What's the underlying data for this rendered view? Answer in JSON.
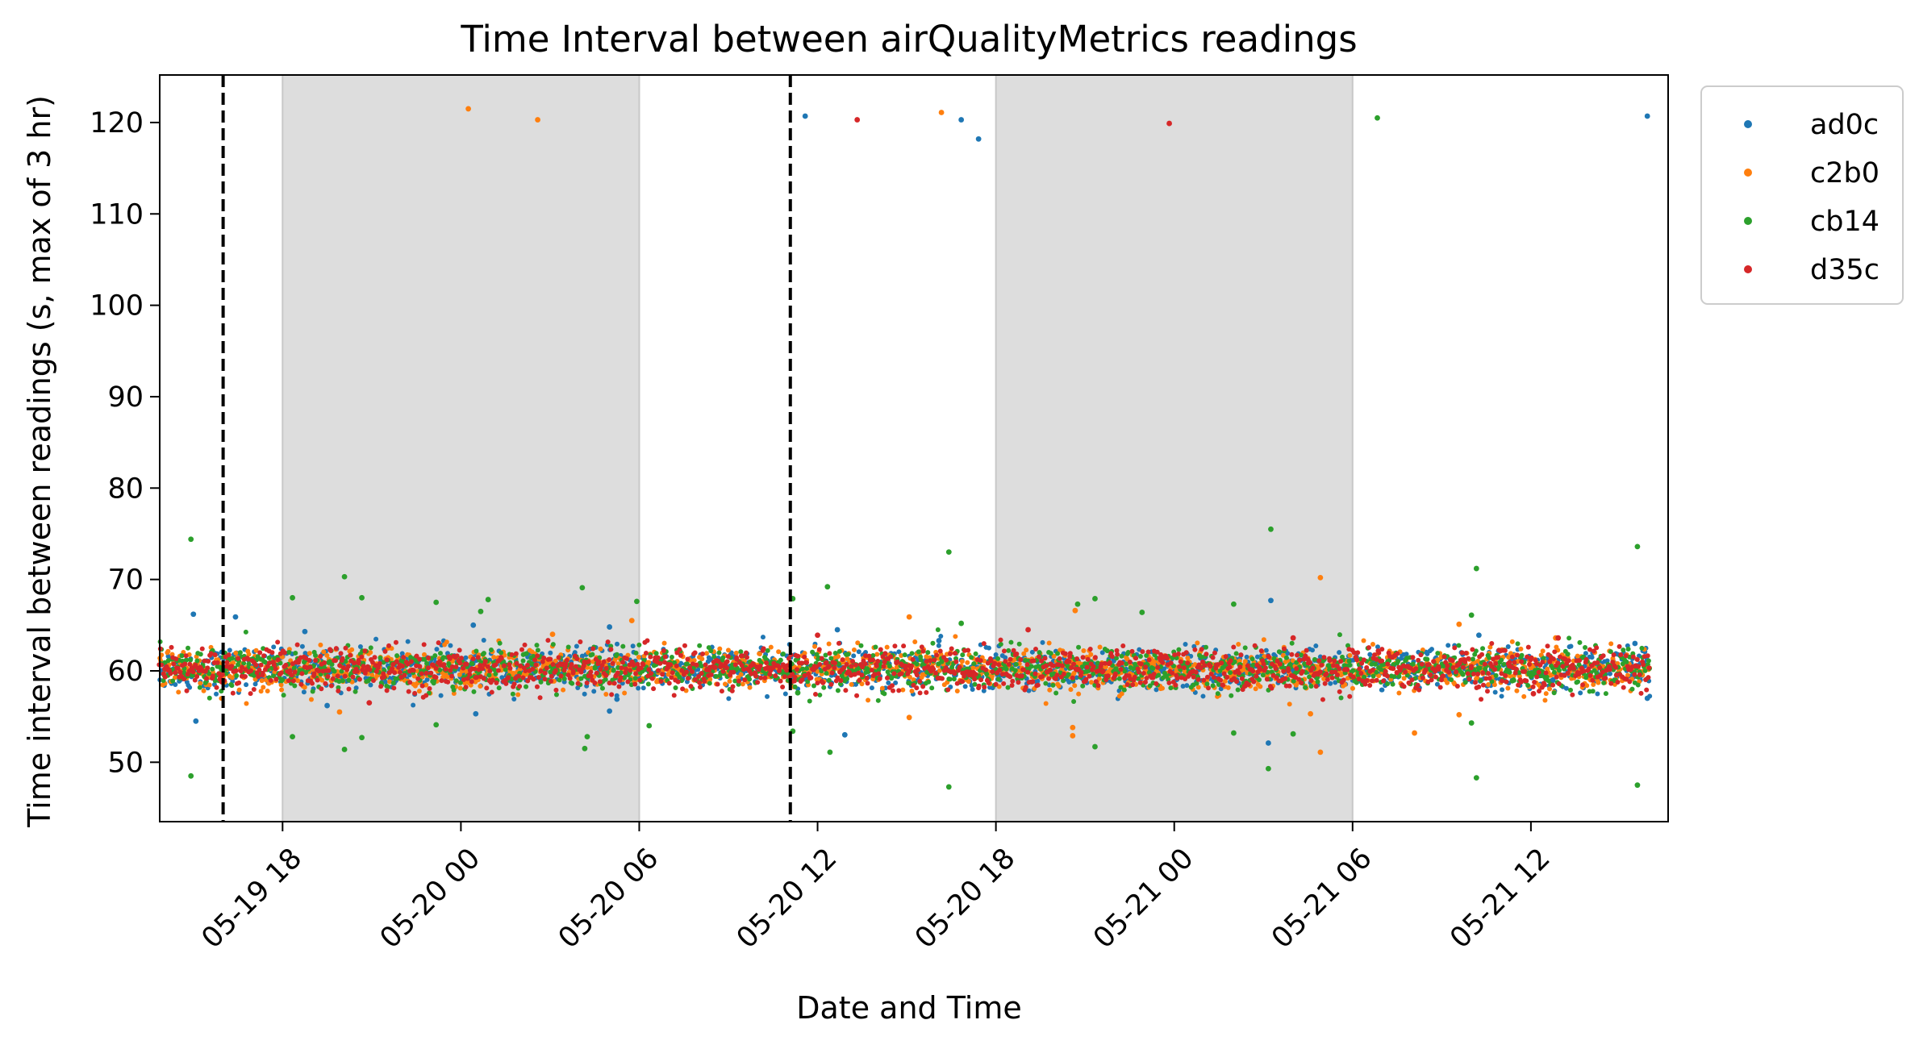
{
  "chart_data": {
    "type": "scatter",
    "title": "Time Interval between airQualityMetrics readings",
    "xlabel": "Date and Time",
    "ylabel": "Time interval between readings (s, max of 3 hr)",
    "x_axis": {
      "type": "datetime",
      "range": [
        "2024-05-19 13:52",
        "2024-05-21 16:37"
      ],
      "ticks": [
        "05-19 18",
        "05-20 00",
        "05-20 06",
        "05-20 12",
        "05-20 18",
        "05-21 00",
        "05-21 06",
        "05-21 12"
      ],
      "tick_times": [
        "2024-05-19 18:00",
        "2024-05-20 00:00",
        "2024-05-20 06:00",
        "2024-05-20 12:00",
        "2024-05-20 18:00",
        "2024-05-21 00:00",
        "2024-05-21 06:00",
        "2024-05-21 12:00"
      ],
      "tick_rotation_deg": 45
    },
    "y_axis": {
      "range": [
        43.5,
        125.2
      ],
      "ticks": [
        50,
        60,
        70,
        80,
        90,
        100,
        110,
        120
      ]
    },
    "grid": false,
    "legend_position": "outside-upper-right",
    "shaded_periods": [
      {
        "start": "2024-05-19 18:00",
        "end": "2024-05-20 06:00",
        "color": "#dddddd"
      },
      {
        "start": "2024-05-20 18:00",
        "end": "2024-05-21 06:00",
        "color": "#dddddd"
      }
    ],
    "vertical_lines": [
      {
        "x": "2024-05-19 16:00",
        "style": "dashed",
        "color": "#000000"
      },
      {
        "x": "2024-05-20 11:05",
        "style": "dashed",
        "color": "#000000"
      }
    ],
    "series": [
      {
        "name": "ad0c",
        "color": "#1f77b4",
        "points": [
          [
            "2024-05-19 15:00",
            66.2
          ],
          [
            "2024-05-19 15:05",
            54.5
          ],
          [
            "2024-05-19 16:25",
            65.9
          ],
          [
            "2024-05-19 18:45",
            64.3
          ],
          [
            "2024-05-19 19:30",
            56.2
          ],
          [
            "2024-05-20 00:30",
            55.3
          ],
          [
            "2024-05-20 00:25",
            65.0
          ],
          [
            "2024-05-20 05:00",
            55.6
          ],
          [
            "2024-05-20 05:00",
            64.8
          ],
          [
            "2024-05-20 05:15",
            56.9
          ],
          [
            "2024-05-20 11:35",
            120.7
          ],
          [
            "2024-05-20 12:40",
            64.5
          ],
          [
            "2024-05-20 12:55",
            53.0
          ],
          [
            "2024-05-20 16:50",
            120.3
          ],
          [
            "2024-05-20 17:25",
            118.2
          ],
          [
            "2024-05-20 16:05",
            63.3
          ],
          [
            "2024-05-21 03:15",
            67.7
          ],
          [
            "2024-05-21 03:10",
            52.1
          ],
          [
            "2024-05-21 10:15",
            63.9
          ],
          [
            "2024-05-21 15:55",
            120.7
          ],
          [
            "2024-05-21 15:30",
            63.0
          ],
          [
            "2024-05-21 15:55",
            57.0
          ]
        ]
      },
      {
        "name": "c2b0",
        "color": "#ff7f0e",
        "points": [
          [
            "2024-05-20 00:15",
            121.5
          ],
          [
            "2024-05-20 02:35",
            120.3
          ],
          [
            "2024-05-19 19:55",
            55.5
          ],
          [
            "2024-05-20 03:05",
            64.0
          ],
          [
            "2024-05-20 05:45",
            65.5
          ],
          [
            "2024-05-20 16:10",
            121.1
          ],
          [
            "2024-05-20 15:05",
            65.9
          ],
          [
            "2024-05-20 15:05",
            54.9
          ],
          [
            "2024-05-20 20:40",
            66.6
          ],
          [
            "2024-05-20 20:35",
            53.8
          ],
          [
            "2024-05-20 20:35",
            52.9
          ],
          [
            "2024-05-21 04:55",
            70.2
          ],
          [
            "2024-05-21 04:55",
            51.1
          ],
          [
            "2024-05-21 04:35",
            55.3
          ],
          [
            "2024-05-21 08:05",
            53.2
          ],
          [
            "2024-05-21 09:35",
            65.1
          ],
          [
            "2024-05-21 09:35",
            55.2
          ],
          [
            "2024-05-21 12:50",
            63.6
          ]
        ]
      },
      {
        "name": "cb14",
        "color": "#2ca02c",
        "points": [
          [
            "2024-05-19 14:55",
            74.4
          ],
          [
            "2024-05-19 14:55",
            48.5
          ],
          [
            "2024-05-19 18:20",
            68.0
          ],
          [
            "2024-05-19 18:20",
            52.8
          ],
          [
            "2024-05-19 20:05",
            51.4
          ],
          [
            "2024-05-19 20:05",
            70.3
          ],
          [
            "2024-05-19 20:40",
            68.0
          ],
          [
            "2024-05-19 20:40",
            52.7
          ],
          [
            "2024-05-19 23:10",
            67.5
          ],
          [
            "2024-05-19 23:10",
            54.1
          ],
          [
            "2024-05-20 00:40",
            66.5
          ],
          [
            "2024-05-20 00:55",
            67.8
          ],
          [
            "2024-05-20 04:05",
            69.1
          ],
          [
            "2024-05-20 04:10",
            51.5
          ],
          [
            "2024-05-20 04:15",
            52.8
          ],
          [
            "2024-05-20 05:55",
            67.6
          ],
          [
            "2024-05-20 06:20",
            54.0
          ],
          [
            "2024-05-20 11:10",
            67.9
          ],
          [
            "2024-05-20 11:10",
            53.4
          ],
          [
            "2024-05-20 11:20",
            57.6
          ],
          [
            "2024-05-20 12:20",
            69.2
          ],
          [
            "2024-05-20 12:25",
            51.1
          ],
          [
            "2024-05-20 16:25",
            73.0
          ],
          [
            "2024-05-20 16:25",
            47.3
          ],
          [
            "2024-05-20 16:50",
            65.2
          ],
          [
            "2024-05-20 20:45",
            67.3
          ],
          [
            "2024-05-20 21:20",
            67.9
          ],
          [
            "2024-05-20 21:20",
            51.7
          ],
          [
            "2024-05-20 22:55",
            66.4
          ],
          [
            "2024-05-21 02:00",
            67.3
          ],
          [
            "2024-05-21 02:00",
            53.2
          ],
          [
            "2024-05-21 03:15",
            75.5
          ],
          [
            "2024-05-21 03:10",
            49.3
          ],
          [
            "2024-05-21 04:00",
            53.1
          ],
          [
            "2024-05-21 06:50",
            120.5
          ],
          [
            "2024-05-21 10:00",
            66.1
          ],
          [
            "2024-05-21 10:00",
            54.3
          ],
          [
            "2024-05-21 10:10",
            71.2
          ],
          [
            "2024-05-21 10:10",
            48.3
          ],
          [
            "2024-05-21 15:35",
            73.6
          ],
          [
            "2024-05-21 15:35",
            47.5
          ]
        ]
      },
      {
        "name": "d35c",
        "color": "#d62728",
        "points": [
          [
            "2024-05-20 13:20",
            120.3
          ],
          [
            "2024-05-20 23:50",
            119.9
          ],
          [
            "2024-05-20 12:00",
            63.9
          ],
          [
            "2024-05-20 19:05",
            64.5
          ],
          [
            "2024-05-21 04:00",
            63.6
          ],
          [
            "2024-05-21 12:55",
            63.6
          ],
          [
            "2024-05-21 12:05",
            57.5
          ],
          [
            "2024-05-19 20:55",
            56.5
          ]
        ]
      }
    ],
    "dense_band": {
      "x_range": [
        "2024-05-19 13:52",
        "2024-05-21 16:00"
      ],
      "center": 60.2,
      "spread_note_units": "s",
      "half_width": 2.5
    }
  }
}
